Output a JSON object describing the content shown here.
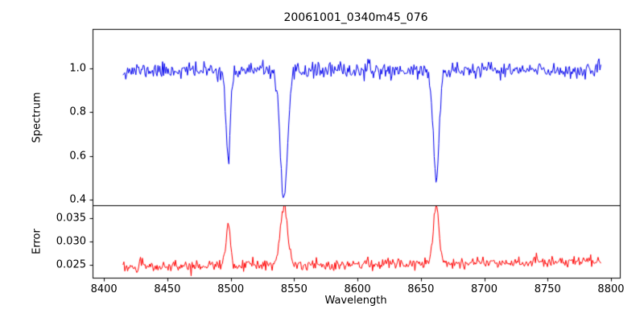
{
  "figure": {
    "background": "#ffffff",
    "axis_color": "#000000"
  },
  "chart_data": {
    "type": "line",
    "title": "20061001_0340m45_076",
    "xlabel": "Wavelength",
    "legend": "none",
    "grid": false,
    "xlim": [
      8391,
      8807
    ],
    "x_ticks": [
      8400,
      8450,
      8500,
      8550,
      8600,
      8650,
      8700,
      8750,
      8800
    ],
    "xtick_labels": [
      "8400",
      "8450",
      "8500",
      "8550",
      "8600",
      "8650",
      "8700",
      "8750",
      "8800"
    ],
    "x_range": [
      8415,
      8792
    ],
    "n_points": 520,
    "seed": 11,
    "panels": [
      {
        "name": "spectrum",
        "ylabel": "Spectrum",
        "color": "#0000ee",
        "ylim": [
          0.374,
          1.18
        ],
        "yticks": [
          0.4,
          0.6,
          0.8,
          1.0
        ],
        "ytick_labels": [
          "0.4",
          "0.6",
          "0.8",
          "1.0"
        ],
        "baseline": 0.99,
        "trend_per_x": 0,
        "noise_sigma": 0.018,
        "features": [
          {
            "center": 8498,
            "amplitude": -0.43,
            "sigma": 1.7
          },
          {
            "center": 8542,
            "amplitude": -0.59,
            "sigma": 3.0
          },
          {
            "center": 8662,
            "amplitude": -0.5,
            "sigma": 2.3
          }
        ]
      },
      {
        "name": "error",
        "ylabel": "Error",
        "color": "#ff0000",
        "ylim": [
          0.0222,
          0.0378
        ],
        "yticks": [
          0.025,
          0.03,
          0.035
        ],
        "ytick_labels": [
          "0.025",
          "0.030",
          "0.035"
        ],
        "baseline": 0.0245,
        "trend_per_x": 3.5e-06,
        "noise_sigma": 0.0006,
        "features": [
          {
            "center": 8498,
            "amplitude": 0.009,
            "sigma": 1.7
          },
          {
            "center": 8542,
            "amplitude": 0.0123,
            "sigma": 2.8
          },
          {
            "center": 8662,
            "amplitude": 0.013,
            "sigma": 2.2
          }
        ]
      }
    ]
  }
}
